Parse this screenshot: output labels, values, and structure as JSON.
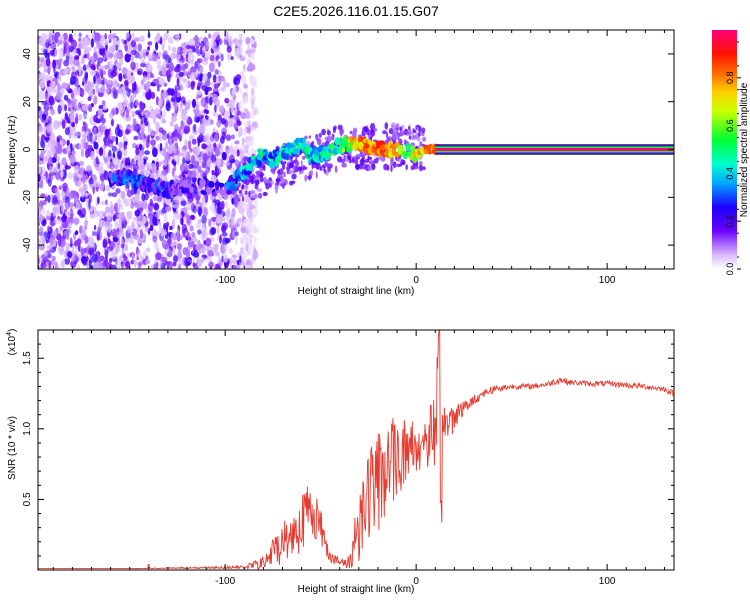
{
  "figure_title": "C2E5.2026.116.01.15.G07",
  "chart_data": [
    {
      "type": "heatmap",
      "title": "C2E5.2026.116.01.15.G07",
      "xlabel": "Height of straight line (km)",
      "ylabel": "Frequency (Hz)",
      "xlim": [
        -198,
        135
      ],
      "ylim": [
        -50,
        50
      ],
      "x_ticks": [
        -100,
        0,
        100
      ],
      "x_tick_labels": [
        "-100",
        "0",
        "100"
      ],
      "y_ticks": [
        -40,
        -20,
        0,
        20,
        40
      ],
      "y_tick_labels": [
        "-40",
        "-20",
        "0",
        "20",
        "40"
      ],
      "colorbar": {
        "label": "Normalized spectral amplitude",
        "range": [
          0,
          1
        ],
        "ticks": [
          0.0,
          0.2,
          0.4,
          0.6,
          0.8
        ],
        "tick_labels": [
          "0.0",
          "0.2",
          "0.4",
          "0.6",
          "0.8"
        ]
      },
      "noise_region": {
        "x": [
          -198,
          -92
        ],
        "y": [
          -50,
          48
        ],
        "amplitude_range": [
          0.05,
          0.25
        ]
      },
      "signal_track": [
        {
          "x": -160,
          "y": -12,
          "amp": 0.22
        },
        {
          "x": -150,
          "y": -12,
          "amp": 0.25
        },
        {
          "x": -140,
          "y": -15,
          "amp": 0.22
        },
        {
          "x": -130,
          "y": -17,
          "amp": 0.2
        },
        {
          "x": -120,
          "y": -15,
          "amp": 0.12
        },
        {
          "x": -110,
          "y": -16,
          "amp": 0.15
        },
        {
          "x": -100,
          "y": -17,
          "amp": 0.2
        },
        {
          "x": -95,
          "y": -13,
          "amp": 0.3
        },
        {
          "x": -90,
          "y": -9,
          "amp": 0.35
        },
        {
          "x": -85,
          "y": -5,
          "amp": 0.4
        },
        {
          "x": -80,
          "y": -2,
          "amp": 0.4
        },
        {
          "x": -75,
          "y": -4,
          "amp": 0.35
        },
        {
          "x": -70,
          "y": -2,
          "amp": 0.4
        },
        {
          "x": -65,
          "y": 0,
          "amp": 0.4
        },
        {
          "x": -60,
          "y": 3,
          "amp": 0.45
        },
        {
          "x": -55,
          "y": -3,
          "amp": 0.38
        },
        {
          "x": -50,
          "y": -2,
          "amp": 0.4
        },
        {
          "x": -45,
          "y": -1,
          "amp": 0.45
        },
        {
          "x": -40,
          "y": 2,
          "amp": 0.5
        },
        {
          "x": -35,
          "y": 2,
          "amp": 0.65
        },
        {
          "x": -30,
          "y": 2,
          "amp": 0.75
        },
        {
          "x": -25,
          "y": 1,
          "amp": 0.8
        },
        {
          "x": -20,
          "y": 0,
          "amp": 0.85
        },
        {
          "x": -15,
          "y": 0,
          "amp": 0.8
        },
        {
          "x": -5,
          "y": -1,
          "amp": 0.6
        },
        {
          "x": 0,
          "y": -2,
          "amp": 0.65
        },
        {
          "x": 5,
          "y": 0,
          "amp": 0.75
        },
        {
          "x": 10,
          "y": 0,
          "amp": 0.85
        },
        {
          "x": 20,
          "y": 0,
          "amp": 1.0
        },
        {
          "x": 135,
          "y": 0,
          "amp": 1.0
        }
      ],
      "stable_line": {
        "x": [
          10,
          135
        ],
        "y": 0,
        "amp": 1.0
      }
    },
    {
      "type": "line",
      "xlabel": "Height of straight line (km)",
      "ylabel": "SNR (10 * v/v)",
      "y_scale_label": "(x10",
      "y_scale_exponent": "4",
      "xlim": [
        -198,
        135
      ],
      "ylim": [
        0,
        1.7
      ],
      "x_ticks": [
        -100,
        0,
        100
      ],
      "x_tick_labels": [
        "-100",
        "0",
        "100"
      ],
      "y_ticks": [
        0.5,
        1.0,
        1.5
      ],
      "y_tick_labels": [
        "0.5",
        "1.0",
        "1.5"
      ],
      "series": [
        {
          "name": "SNR",
          "color": "#e83a2e",
          "x": [
            -198,
            -150,
            -90,
            -80,
            -75,
            -70,
            -65,
            -60,
            -55,
            -50,
            -45,
            -40,
            -35,
            -30,
            -25,
            -20,
            -15,
            -10,
            -5,
            0,
            5,
            10,
            12,
            15,
            20,
            25,
            30,
            35,
            40,
            50,
            60,
            70,
            75,
            80,
            90,
            100,
            110,
            120,
            130,
            135
          ],
          "values": [
            0.01,
            0.01,
            0.02,
            0.05,
            0.12,
            0.2,
            0.25,
            0.35,
            0.45,
            0.3,
            0.1,
            0.05,
            0.05,
            0.35,
            0.55,
            0.6,
            0.75,
            0.8,
            0.85,
            0.88,
            0.92,
            1.0,
            1.6,
            1.0,
            1.1,
            1.15,
            1.2,
            1.25,
            1.28,
            1.3,
            1.3,
            1.32,
            1.35,
            1.33,
            1.32,
            1.32,
            1.31,
            1.3,
            1.28,
            1.25
          ],
          "spread": [
            0,
            0,
            0.01,
            0.05,
            0.12,
            0.15,
            0.18,
            0.22,
            0.2,
            0.15,
            0.05,
            0.03,
            0.05,
            0.3,
            0.35,
            0.4,
            0.3,
            0.3,
            0.25,
            0.25,
            0.2,
            0.3,
            0.3,
            0.2,
            0.1,
            0.05,
            0.04,
            0.03,
            0.03,
            0.02,
            0.02,
            0.02,
            0.03,
            0.02,
            0.02,
            0.02,
            0.02,
            0.02,
            0.02,
            0.02
          ]
        }
      ]
    }
  ]
}
